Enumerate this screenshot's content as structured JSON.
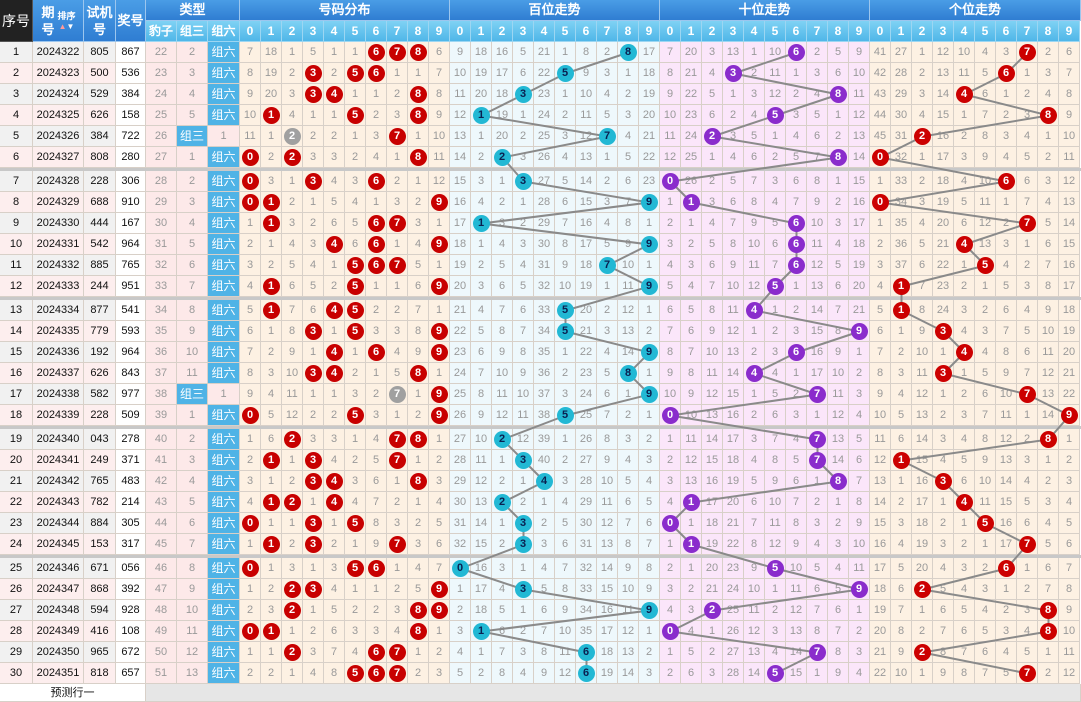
{
  "header": {
    "seq": "序号",
    "period": "期号",
    "sort_label": "排序",
    "trial": "试机号",
    "prize": "奖号",
    "type": "类型",
    "type_cols": [
      "豹子",
      "组三",
      "组六"
    ],
    "distribution": "号码分布",
    "hundreds": "百位走势",
    "tens": "十位走势",
    "units": "个位走势",
    "digits": [
      "0",
      "1",
      "2",
      "3",
      "4",
      "5",
      "6",
      "7",
      "8",
      "9"
    ]
  },
  "labels": {
    "leopard": "豹子",
    "group3": "组三",
    "group6": "组六",
    "predict_row": "预测行一"
  },
  "colors": {
    "dist_ball": "#c80000",
    "dup_ball": "#a0a0a0",
    "hundreds_ball": "#22b8d4",
    "tens_ball": "#8a2ccc",
    "units_ball": "#cc0000",
    "dist_bg": "#fdf1e3",
    "hundreds_bg": "#eef8fc",
    "tens_bg": "#fbe6fa",
    "units_bg": "#fdf1e3",
    "line": "#8a8a8a"
  },
  "first_row_omissions": {
    "type": [
      22,
      2,
      "组六"
    ],
    "distribution": [
      7,
      18,
      1,
      5,
      1,
      1,
      6,
      7,
      8,
      6
    ],
    "hundreds": [
      9,
      18,
      16,
      5,
      21,
      1,
      8,
      2,
      8,
      17
    ],
    "tens": [
      7,
      20,
      3,
      13,
      1,
      10,
      6,
      2,
      5,
      9
    ],
    "units": [
      41,
      27,
      1,
      12,
      10,
      4,
      3,
      7,
      2,
      6
    ]
  },
  "rows": [
    {
      "seq": "1",
      "period": "2024322",
      "trial": "805",
      "prize": "867"
    },
    {
      "seq": "2",
      "period": "2024323",
      "trial": "500",
      "prize": "536"
    },
    {
      "seq": "3",
      "period": "2024324",
      "trial": "529",
      "prize": "384"
    },
    {
      "seq": "4",
      "period": "2024325",
      "trial": "626",
      "prize": "158"
    },
    {
      "seq": "5",
      "period": "2024326",
      "trial": "384",
      "prize": "722"
    },
    {
      "seq": "6",
      "period": "2024327",
      "trial": "808",
      "prize": "280"
    },
    {
      "seq": "7",
      "period": "2024328",
      "trial": "228",
      "prize": "306"
    },
    {
      "seq": "8",
      "period": "2024329",
      "trial": "688",
      "prize": "910"
    },
    {
      "seq": "9",
      "period": "2024330",
      "trial": "444",
      "prize": "167"
    },
    {
      "seq": "10",
      "period": "2024331",
      "trial": "542",
      "prize": "964"
    },
    {
      "seq": "11",
      "period": "2024332",
      "trial": "885",
      "prize": "765"
    },
    {
      "seq": "12",
      "period": "2024333",
      "trial": "244",
      "prize": "951"
    },
    {
      "seq": "13",
      "period": "2024334",
      "trial": "877",
      "prize": "541"
    },
    {
      "seq": "14",
      "period": "2024335",
      "trial": "779",
      "prize": "593"
    },
    {
      "seq": "15",
      "period": "2024336",
      "trial": "192",
      "prize": "964"
    },
    {
      "seq": "16",
      "period": "2024337",
      "trial": "626",
      "prize": "843"
    },
    {
      "seq": "17",
      "period": "2024338",
      "trial": "582",
      "prize": "977"
    },
    {
      "seq": "18",
      "period": "2024339",
      "trial": "228",
      "prize": "509"
    },
    {
      "seq": "19",
      "period": "2024340",
      "trial": "043",
      "prize": "278"
    },
    {
      "seq": "20",
      "period": "2024341",
      "trial": "249",
      "prize": "371"
    },
    {
      "seq": "21",
      "period": "2024342",
      "trial": "765",
      "prize": "483"
    },
    {
      "seq": "22",
      "period": "2024343",
      "trial": "782",
      "prize": "214"
    },
    {
      "seq": "23",
      "period": "2024344",
      "trial": "884",
      "prize": "305"
    },
    {
      "seq": "24",
      "period": "2024345",
      "trial": "153",
      "prize": "317"
    },
    {
      "seq": "25",
      "period": "2024346",
      "trial": "671",
      "prize": "056"
    },
    {
      "seq": "26",
      "period": "2024347",
      "trial": "868",
      "prize": "392"
    },
    {
      "seq": "27",
      "period": "2024348",
      "trial": "594",
      "prize": "928"
    },
    {
      "seq": "28",
      "period": "2024349",
      "trial": "416",
      "prize": "108"
    },
    {
      "seq": "29",
      "period": "2024350",
      "trial": "965",
      "prize": "672"
    },
    {
      "seq": "30",
      "period": "2024351",
      "trial": "818",
      "prize": "657"
    }
  ]
}
